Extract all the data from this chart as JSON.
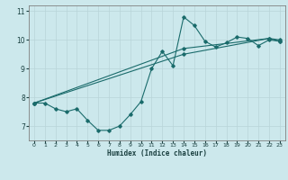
{
  "title": "",
  "xlabel": "Humidex (Indice chaleur)",
  "xlim": [
    -0.5,
    23.5
  ],
  "ylim": [
    6.5,
    11.2
  ],
  "yticks": [
    7,
    8,
    9,
    10,
    11
  ],
  "xticks": [
    0,
    1,
    2,
    3,
    4,
    5,
    6,
    7,
    8,
    9,
    10,
    11,
    12,
    13,
    14,
    15,
    16,
    17,
    18,
    19,
    20,
    21,
    22,
    23
  ],
  "bg_color": "#cce8ec",
  "grid_color": "#b8d4d8",
  "line_color": "#1a6b6b",
  "lines": [
    {
      "x": [
        0,
        1,
        2,
        3,
        4,
        5,
        6,
        7,
        8,
        9,
        10,
        11,
        12,
        13,
        14,
        15,
        16,
        17,
        18,
        19,
        20,
        21,
        22,
        23
      ],
      "y": [
        7.8,
        7.8,
        7.6,
        7.5,
        7.6,
        7.2,
        6.85,
        6.85,
        7.0,
        7.4,
        7.85,
        9.0,
        9.6,
        9.1,
        10.8,
        10.5,
        9.95,
        9.75,
        9.9,
        10.1,
        10.05,
        9.8,
        10.0,
        9.95
      ]
    },
    {
      "x": [
        0,
        14,
        22,
        23
      ],
      "y": [
        7.8,
        9.5,
        10.05,
        10.0
      ]
    },
    {
      "x": [
        0,
        14,
        22,
        23
      ],
      "y": [
        7.8,
        9.7,
        10.05,
        9.95
      ]
    }
  ]
}
